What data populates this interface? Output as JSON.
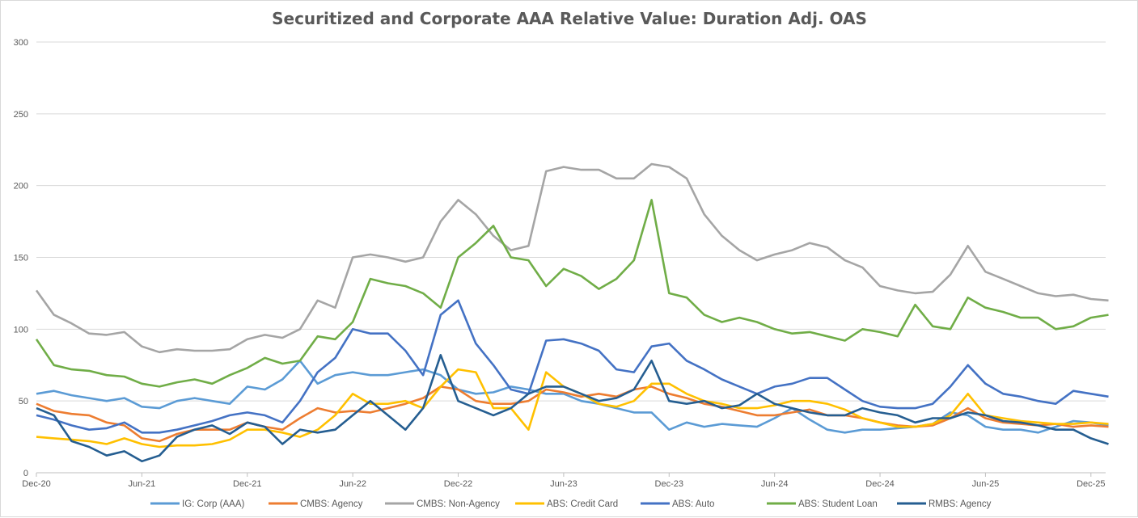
{
  "chart_data": {
    "type": "line",
    "title": "Securitized and Corporate AAA Relative Value: Duration Adj. OAS",
    "xlabel": "",
    "ylabel": "",
    "ylim": [
      0,
      300
    ],
    "yticks": [
      0,
      50,
      100,
      150,
      200,
      250,
      300
    ],
    "xticks": [
      "Dec-20",
      "Jun-21",
      "Dec-21",
      "Jun-22",
      "Dec-22",
      "Jun-23",
      "Dec-23",
      "Jun-24",
      "Dec-24",
      "Jun-25",
      "Dec-25"
    ],
    "grid": "horizontal",
    "legend": "bottom",
    "x": [
      "Dec-20",
      "Jan-21",
      "Feb-21",
      "Mar-21",
      "Apr-21",
      "May-21",
      "Jun-21",
      "Jul-21",
      "Aug-21",
      "Sep-21",
      "Oct-21",
      "Nov-21",
      "Dec-21",
      "Jan-22",
      "Feb-22",
      "Mar-22",
      "Apr-22",
      "May-22",
      "Jun-22",
      "Jul-22",
      "Aug-22",
      "Sep-22",
      "Oct-22",
      "Nov-22",
      "Dec-22",
      "Jan-23",
      "Feb-23",
      "Mar-23",
      "Apr-23",
      "May-23",
      "Jun-23",
      "Jul-23",
      "Aug-23",
      "Sep-23",
      "Oct-23",
      "Nov-23",
      "Dec-23",
      "Jan-24",
      "Feb-24",
      "Mar-24",
      "Apr-24",
      "May-24",
      "Jun-24",
      "Jul-24",
      "Aug-24",
      "Sep-24",
      "Oct-24",
      "Nov-24",
      "Dec-24",
      "Jan-25",
      "Feb-25",
      "Mar-25",
      "Apr-25",
      "May-25",
      "Jun-25",
      "Jul-25",
      "Aug-25",
      "Sep-25",
      "Oct-25",
      "Nov-25",
      "Dec-25",
      "Jan-26"
    ],
    "series": [
      {
        "name": "IG: Corp (AAA)",
        "color": "#5B9BD5",
        "values": [
          55,
          57,
          54,
          52,
          50,
          52,
          46,
          45,
          50,
          52,
          50,
          48,
          60,
          58,
          65,
          78,
          62,
          68,
          70,
          68,
          68,
          70,
          72,
          68,
          58,
          55,
          56,
          60,
          58,
          55,
          55,
          50,
          48,
          45,
          42,
          42,
          30,
          35,
          32,
          34,
          33,
          32,
          38,
          45,
          37,
          30,
          28,
          30,
          30,
          31,
          32,
          34,
          42,
          40,
          32,
          30,
          30,
          28,
          32,
          36,
          35,
          33
        ]
      },
      {
        "name": "CMBS: Agency",
        "color": "#ED7D31",
        "values": [
          48,
          43,
          41,
          40,
          35,
          33,
          24,
          22,
          27,
          30,
          30,
          30,
          35,
          32,
          30,
          38,
          45,
          42,
          43,
          42,
          45,
          48,
          52,
          60,
          58,
          50,
          48,
          48,
          50,
          58,
          56,
          53,
          55,
          53,
          58,
          60,
          55,
          52,
          48,
          46,
          43,
          40,
          40,
          42,
          44,
          40,
          40,
          38,
          35,
          33,
          32,
          33,
          38,
          45,
          38,
          35,
          34,
          33,
          34,
          32,
          33,
          32
        ]
      },
      {
        "name": "CMBS: Non-Agency",
        "color": "#A5A5A5",
        "values": [
          127,
          110,
          104,
          97,
          96,
          98,
          88,
          84,
          86,
          85,
          85,
          86,
          93,
          96,
          94,
          100,
          120,
          115,
          150,
          152,
          150,
          147,
          150,
          175,
          190,
          180,
          165,
          155,
          158,
          210,
          213,
          211,
          211,
          205,
          205,
          215,
          213,
          205,
          180,
          165,
          155,
          148,
          152,
          155,
          160,
          157,
          148,
          143,
          130,
          127,
          125,
          126,
          138,
          158,
          140,
          135,
          130,
          125,
          123,
          124,
          121,
          120
        ]
      },
      {
        "name": "ABS: Credit Card",
        "color": "#FFC000",
        "values": [
          25,
          24,
          23,
          22,
          20,
          24,
          20,
          18,
          19,
          19,
          20,
          23,
          30,
          30,
          28,
          25,
          30,
          40,
          55,
          48,
          48,
          50,
          45,
          60,
          72,
          70,
          45,
          45,
          30,
          70,
          60,
          55,
          48,
          46,
          50,
          62,
          62,
          55,
          50,
          48,
          45,
          45,
          47,
          50,
          50,
          48,
          44,
          38,
          35,
          32,
          32,
          34,
          40,
          55,
          40,
          38,
          36,
          35,
          34,
          34,
          35,
          34
        ]
      },
      {
        "name": "ABS: Auto",
        "color": "#4472C4",
        "values": [
          40,
          37,
          33,
          30,
          31,
          35,
          28,
          28,
          30,
          33,
          36,
          40,
          42,
          40,
          35,
          50,
          70,
          80,
          100,
          97,
          97,
          85,
          68,
          110,
          120,
          90,
          75,
          58,
          55,
          92,
          93,
          90,
          85,
          72,
          70,
          88,
          90,
          78,
          72,
          65,
          60,
          55,
          60,
          62,
          66,
          66,
          58,
          50,
          46,
          45,
          45,
          48,
          60,
          75,
          62,
          55,
          53,
          50,
          48,
          57,
          55,
          53
        ]
      },
      {
        "name": "ABS: Student Loan",
        "color": "#70AD47",
        "values": [
          93,
          75,
          72,
          71,
          68,
          67,
          62,
          60,
          63,
          65,
          62,
          68,
          73,
          80,
          76,
          78,
          95,
          93,
          105,
          135,
          132,
          130,
          125,
          115,
          150,
          160,
          172,
          150,
          148,
          130,
          142,
          137,
          128,
          135,
          148,
          190,
          125,
          122,
          110,
          105,
          108,
          105,
          100,
          97,
          98,
          95,
          92,
          100,
          98,
          95,
          117,
          102,
          100,
          122,
          115,
          112,
          108,
          108,
          100,
          102,
          108,
          110
        ]
      },
      {
        "name": "RMBS: Agency",
        "color": "#255E91",
        "values": [
          45,
          40,
          22,
          18,
          12,
          15,
          8,
          12,
          25,
          30,
          33,
          27,
          35,
          32,
          20,
          30,
          28,
          30,
          40,
          50,
          40,
          30,
          45,
          82,
          50,
          45,
          40,
          45,
          55,
          60,
          60,
          55,
          50,
          52,
          58,
          78,
          50,
          48,
          50,
          45,
          47,
          55,
          48,
          45,
          42,
          40,
          40,
          45,
          42,
          40,
          35,
          38,
          38,
          42,
          40,
          36,
          35,
          33,
          30,
          30,
          24,
          20
        ]
      }
    ]
  }
}
